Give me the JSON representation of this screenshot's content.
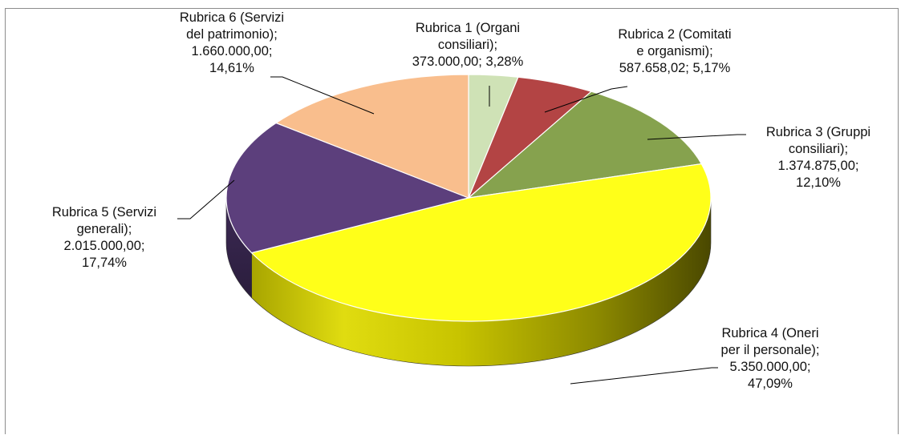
{
  "chart_data": {
    "type": "pie",
    "style": "3d-exploded-none",
    "start_angle": "12 o'clock",
    "direction": "clockwise",
    "slices": [
      {
        "category": "Rubrica 1 (Organi consiliari)",
        "value": 373000.0,
        "percent": 3.28,
        "color": "#cfe2b6",
        "label_lines": [
          "Rubrica 1 (Organi",
          "consiliari);",
          "373.000,00; 3,28%"
        ]
      },
      {
        "category": "Rubrica 2 (Comitati e organismi)",
        "value": 587658.02,
        "percent": 5.17,
        "color": "#b34444",
        "label_lines": [
          "Rubrica 2 (Comitati",
          "e organismi);",
          "587.658,02; 5,17%"
        ]
      },
      {
        "category": "Rubrica 3 (Gruppi consiliari)",
        "value": 1374875.0,
        "percent": 12.1,
        "color": "#86a24e",
        "label_lines": [
          "Rubrica 3 (Gruppi",
          "consiliari);",
          "1.374.875,00;",
          "12,10%"
        ]
      },
      {
        "category": "Rubrica 4 (Oneri per il personale)",
        "value": 5350000.0,
        "percent": 47.09,
        "color": "#ffff19",
        "label_lines": [
          "Rubrica 4 (Oneri",
          "per il personale);",
          "5.350.000,00;",
          "47,09%"
        ]
      },
      {
        "category": "Rubrica 5 (Servizi generali)",
        "value": 2015000.0,
        "percent": 17.74,
        "color": "#5c3f7c",
        "label_lines": [
          "Rubrica 5 (Servizi",
          "generali);",
          "2.015.000,00;",
          "17,74%"
        ]
      },
      {
        "category": "Rubrica 6 (Servizi del patrimonio)",
        "value": 1660000.0,
        "percent": 14.61,
        "color": "#f9be8d",
        "label_lines": [
          "Rubrica 6 (Servizi",
          "del patrimonio);",
          "1.660.000,00;",
          "14,61%"
        ]
      }
    ]
  }
}
